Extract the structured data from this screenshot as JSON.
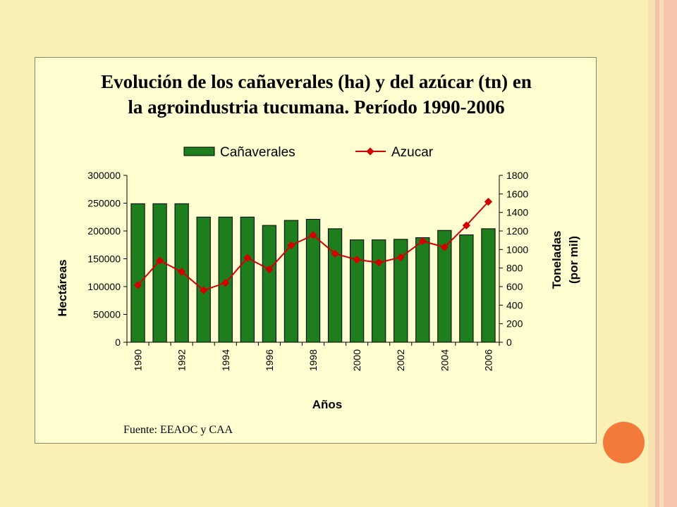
{
  "title_line1": "Evolución de los cañaverales (ha) y del azúcar (tn) en",
  "title_line2": "la agroindustria tucumana. Período 1990-2006",
  "source": "Fuente: EEAOC y CAA",
  "colors": {
    "background": "#faf0b4",
    "panel": "#fffed0",
    "bar": "#1e7e1e",
    "line": "#d40000",
    "accent_circle": "#f47a3c"
  },
  "chart_data": {
    "type": "bar+line",
    "x": [
      1990,
      1991,
      1992,
      1993,
      1994,
      1995,
      1996,
      1997,
      1998,
      1999,
      2000,
      2001,
      2002,
      2003,
      2004,
      2005,
      2006
    ],
    "x_tick_labels": [
      "1990",
      "1992",
      "1994",
      "1996",
      "1998",
      "2000",
      "2002",
      "2004",
      "2006"
    ],
    "xlabel": "Años",
    "ylabel_left": "Hectáreas",
    "ylabel_right_line1": "Toneladas",
    "ylabel_right_line2": "(por mil)",
    "ylim_left": [
      0,
      300000
    ],
    "ylim_right": [
      0,
      1800
    ],
    "yticks_left": [
      "0",
      "50000",
      "100000",
      "150000",
      "200000",
      "250000",
      "300000"
    ],
    "yticks_right": [
      "0",
      "200",
      "400",
      "600",
      "800",
      "1000",
      "1200",
      "1400",
      "1600",
      "1800"
    ],
    "legend_position": "top",
    "series": [
      {
        "name": "Cañaverales",
        "type": "bar",
        "axis": "left",
        "values": [
          249000,
          249000,
          249000,
          225000,
          225000,
          225000,
          210000,
          219000,
          221000,
          204000,
          184000,
          184000,
          185000,
          188000,
          201000,
          193000,
          204000
        ]
      },
      {
        "name": "Azucar",
        "type": "line",
        "axis": "right",
        "values": [
          615,
          880,
          760,
          560,
          640,
          910,
          785,
          1045,
          1155,
          955,
          890,
          860,
          915,
          1090,
          1025,
          1260,
          1515
        ]
      }
    ]
  }
}
